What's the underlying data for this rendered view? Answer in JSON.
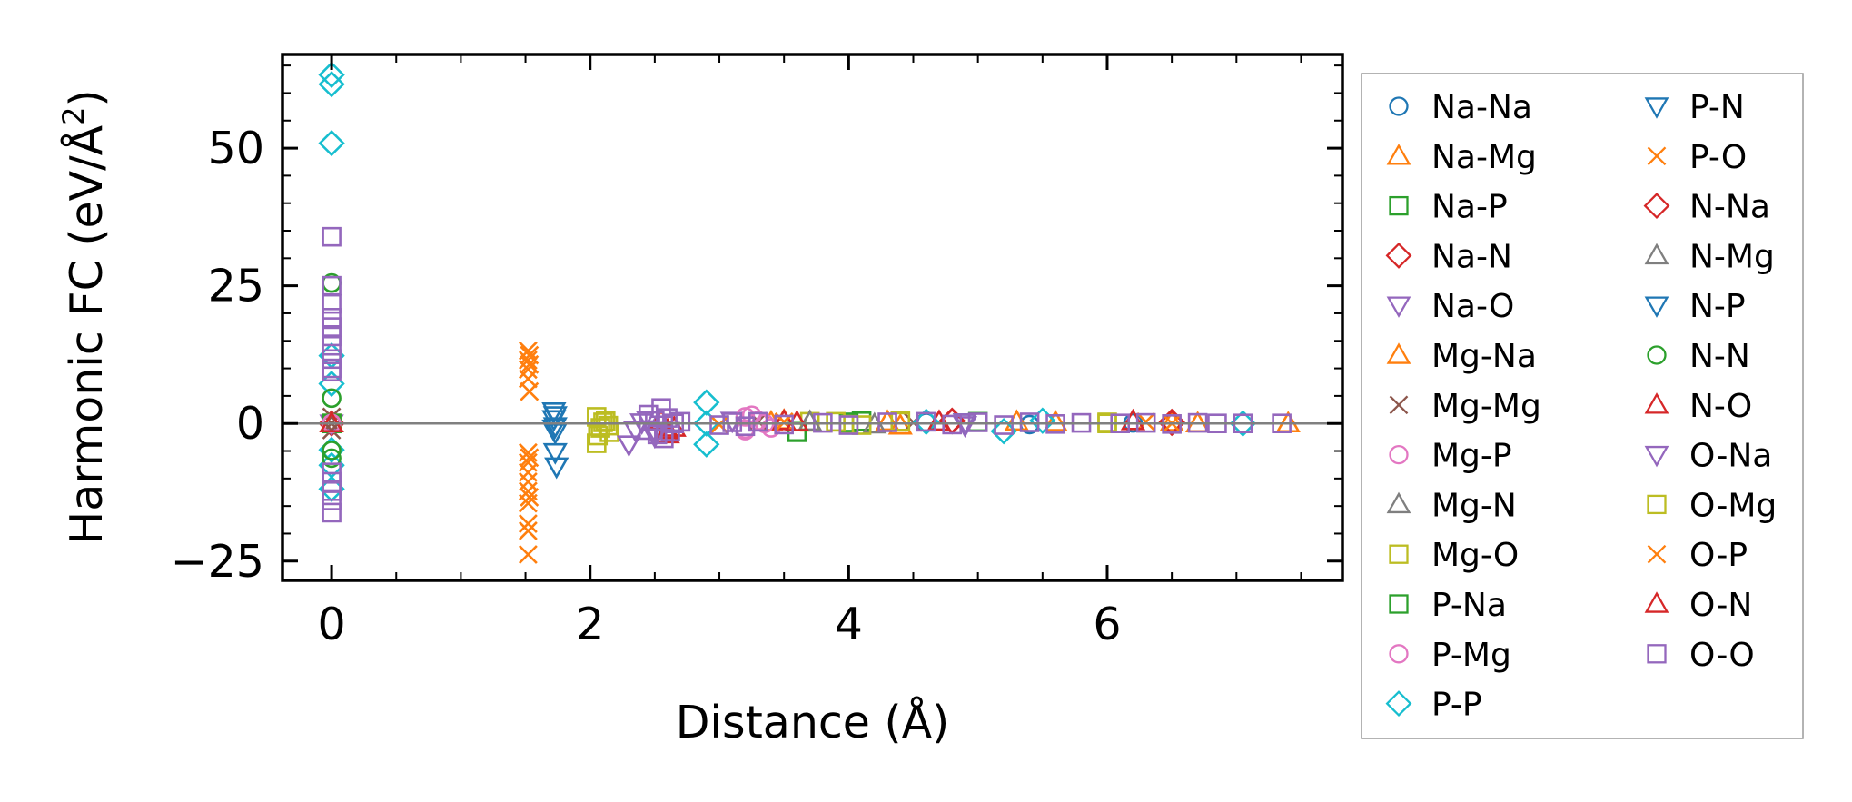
{
  "chart_data": {
    "type": "scatter",
    "xlabel": "Distance (Å)",
    "ylabel_main": "Harmonic FC (eV/Å",
    "ylabel_sup": "2",
    "ylabel_end": ")",
    "xlim": [
      -0.38,
      7.82
    ],
    "ylim": [
      -28.5,
      67
    ],
    "x_ticks": [
      0,
      2,
      4,
      6
    ],
    "y_ticks": [
      -25,
      0,
      25,
      50
    ],
    "x_tick_labels": [
      "0",
      "2",
      "4",
      "6"
    ],
    "y_tick_labels": [
      "−25",
      "0",
      "25",
      "50"
    ],
    "zero_line": true,
    "grid": false,
    "legend_placement": "outside-right",
    "series": [
      {
        "name": "Na-Na",
        "color": "#1f77b4",
        "marker": "circle",
        "points": [
          [
            0,
            0
          ],
          [
            4.6,
            0.2
          ],
          [
            5.4,
            -0.2
          ],
          [
            6.2,
            0.1
          ]
        ]
      },
      {
        "name": "Na-Mg",
        "color": "#ff7f0e",
        "marker": "triangle",
        "points": [
          [
            0,
            0
          ],
          [
            3.5,
            0.5
          ],
          [
            4.4,
            -0.4
          ],
          [
            5.3,
            0.3
          ],
          [
            6.5,
            0.2
          ],
          [
            7.4,
            0
          ]
        ]
      },
      {
        "name": "Na-P",
        "color": "#2ca02c",
        "marker": "square",
        "points": [
          [
            0,
            0
          ],
          [
            3.6,
            -1.5
          ],
          [
            4.1,
            0.4
          ],
          [
            5.0,
            0.3
          ]
        ]
      },
      {
        "name": "Na-N",
        "color": "#d62728",
        "marker": "diamond",
        "points": [
          [
            0,
            0
          ],
          [
            4.8,
            0.5
          ],
          [
            6.5,
            0.3
          ]
        ]
      },
      {
        "name": "Na-O",
        "color": "#9467bd",
        "marker": "triangle-down",
        "points": [
          [
            0,
            0
          ],
          [
            2.5,
            -1.5
          ],
          [
            3.1,
            0.5
          ],
          [
            4.9,
            -0.3
          ]
        ]
      },
      {
        "name": "Mg-Na",
        "color": "#ff7f0e",
        "marker": "triangle",
        "points": [
          [
            0,
            0
          ],
          [
            3.4,
            0.2
          ],
          [
            4.3,
            0.3
          ],
          [
            5.6,
            0.2
          ],
          [
            6.7,
            0
          ]
        ]
      },
      {
        "name": "Mg-Mg",
        "color": "#8c564b",
        "marker": "x",
        "points": [
          [
            0,
            0
          ],
          [
            0,
            1.2
          ],
          [
            0,
            -1.2
          ],
          [
            3.3,
            0.4
          ],
          [
            4.5,
            0.2
          ]
        ]
      },
      {
        "name": "Mg-P",
        "color": "#e377c2",
        "marker": "circle",
        "points": [
          [
            0,
            0
          ],
          [
            3.2,
            1.2
          ],
          [
            3.2,
            -1.3
          ],
          [
            3.3,
            0.5
          ],
          [
            3.4,
            -0.8
          ]
        ]
      },
      {
        "name": "Mg-N",
        "color": "#7f7f7f",
        "marker": "triangle",
        "points": [
          [
            0,
            0
          ],
          [
            3.7,
            0.3
          ],
          [
            4.2,
            -0.2
          ]
        ]
      },
      {
        "name": "Mg-O",
        "color": "#bcbd22",
        "marker": "square",
        "points": [
          [
            0,
            0
          ],
          [
            2.05,
            -3.6
          ],
          [
            2.05,
            1.2
          ],
          [
            2.08,
            -0.8
          ],
          [
            2.12,
            0.4
          ],
          [
            2.15,
            -1.6
          ],
          [
            3.7,
            0.3
          ],
          [
            4.0,
            -0.2
          ],
          [
            4.4,
            0.3
          ],
          [
            6.0,
            0
          ]
        ]
      },
      {
        "name": "P-Na",
        "color": "#2ca02c",
        "marker": "square",
        "points": [
          [
            0,
            0
          ],
          [
            3.6,
            -1.6
          ],
          [
            4.0,
            0.2
          ]
        ]
      },
      {
        "name": "P-Mg",
        "color": "#e377c2",
        "marker": "circle",
        "points": [
          [
            0,
            0
          ],
          [
            3.2,
            -1.0
          ],
          [
            3.25,
            1.5
          ],
          [
            3.35,
            0
          ]
        ]
      },
      {
        "name": "P-P",
        "color": "#17becf",
        "marker": "diamond",
        "points": [
          [
            0,
            63.3
          ],
          [
            0,
            61.6
          ],
          [
            0,
            50.9
          ],
          [
            0,
            12.3
          ],
          [
            0,
            7.2
          ],
          [
            0,
            -4.8
          ],
          [
            0,
            -7.6
          ],
          [
            0,
            -11.9
          ],
          [
            2.9,
            3.8
          ],
          [
            2.9,
            -3.8
          ],
          [
            2.9,
            0
          ],
          [
            4.6,
            0.3
          ],
          [
            5.2,
            -1.4
          ],
          [
            5.5,
            0.5
          ],
          [
            7.05,
            0
          ]
        ]
      },
      {
        "name": "P-N",
        "color": "#1f77b4",
        "marker": "triangle-down",
        "points": [
          [
            1.72,
            2.2
          ],
          [
            1.72,
            0.8
          ],
          [
            1.72,
            -0.9
          ],
          [
            1.73,
            -1.6
          ],
          [
            1.73,
            -5.2
          ],
          [
            1.74,
            -7.8
          ]
        ]
      },
      {
        "name": "P-O",
        "color": "#ff7f0e",
        "marker": "x",
        "points": [
          [
            1.52,
            13.2
          ],
          [
            1.52,
            11.5
          ],
          [
            1.52,
            9.8
          ],
          [
            1.52,
            8.1
          ],
          [
            1.53,
            5.8
          ],
          [
            1.52,
            -5.3
          ],
          [
            1.52,
            -7.1
          ],
          [
            1.52,
            -8.9
          ],
          [
            1.52,
            -10.6
          ],
          [
            1.52,
            -12.3
          ],
          [
            1.52,
            -14.5
          ],
          [
            1.52,
            -18.2
          ],
          [
            1.52,
            -19.5
          ],
          [
            1.52,
            -23.8
          ],
          [
            3.0,
            -0.2
          ],
          [
            3.5,
            0.3
          ],
          [
            6.3,
            0.3
          ]
        ]
      },
      {
        "name": "N-Na",
        "color": "#d62728",
        "marker": "diamond",
        "points": [
          [
            4.8,
            0.4
          ],
          [
            6.5,
            0.1
          ]
        ]
      },
      {
        "name": "N-Mg",
        "color": "#7f7f7f",
        "marker": "triangle",
        "points": [
          [
            3.7,
            0.2
          ]
        ]
      },
      {
        "name": "N-P",
        "color": "#1f77b4",
        "marker": "triangle-down",
        "points": [
          [
            1.73,
            1.5
          ],
          [
            1.73,
            -0.5
          ],
          [
            4.9,
            0.2
          ]
        ]
      },
      {
        "name": "N-N",
        "color": "#2ca02c",
        "marker": "circle",
        "points": [
          [
            0,
            25.5
          ],
          [
            0,
            4.6
          ],
          [
            0,
            -4.9
          ],
          [
            0,
            -6.3
          ]
        ]
      },
      {
        "name": "N-O",
        "color": "#d62728",
        "marker": "triangle",
        "points": [
          [
            0,
            0
          ],
          [
            2.6,
            -2.0
          ],
          [
            2.6,
            -1.2
          ],
          [
            3.5,
            0.4
          ],
          [
            4.7,
            0.3
          ],
          [
            6.2,
            0.4
          ]
        ]
      },
      {
        "name": "O-Na",
        "color": "#9467bd",
        "marker": "triangle-down",
        "points": [
          [
            2.3,
            -3.8
          ],
          [
            2.35,
            -1.2
          ],
          [
            2.4,
            0.2
          ],
          [
            2.45,
            0.6
          ],
          [
            2.5,
            -2.3
          ],
          [
            4.9,
            0.2
          ]
        ]
      },
      {
        "name": "O-Mg",
        "color": "#bcbd22",
        "marker": "square",
        "points": [
          [
            2.06,
            -2.2
          ],
          [
            2.1,
            0.2
          ],
          [
            2.14,
            -0.4
          ],
          [
            3.9,
            0.3
          ],
          [
            4.1,
            -0.3
          ],
          [
            4.4,
            0.4
          ],
          [
            6.0,
            0.2
          ]
        ]
      },
      {
        "name": "O-P",
        "color": "#ff7f0e",
        "marker": "x",
        "points": [
          [
            1.53,
            12.4
          ],
          [
            1.53,
            10.7
          ],
          [
            1.53,
            -6.2
          ],
          [
            1.53,
            -13.4
          ],
          [
            3.5,
            0.2
          ],
          [
            6.5,
            0
          ]
        ]
      },
      {
        "name": "O-N",
        "color": "#d62728",
        "marker": "triangle",
        "points": [
          [
            2.55,
            0.4
          ],
          [
            2.65,
            -0.8
          ],
          [
            3.6,
            0.2
          ]
        ]
      },
      {
        "name": "O-O",
        "color": "#9467bd",
        "marker": "square",
        "points": [
          [
            0,
            33.9
          ],
          [
            0,
            25.0
          ],
          [
            0,
            21.7
          ],
          [
            0,
            19.2
          ],
          [
            0,
            17.5
          ],
          [
            0,
            15.8
          ],
          [
            0,
            14.1
          ],
          [
            0,
            11.7
          ],
          [
            0,
            10.0
          ],
          [
            0,
            9.4
          ],
          [
            0,
            -8.9
          ],
          [
            0,
            -10.6
          ],
          [
            0,
            -12.3
          ],
          [
            0,
            -14.0
          ],
          [
            0,
            -16.2
          ],
          [
            2.45,
            1.6
          ],
          [
            2.45,
            -1.2
          ],
          [
            2.5,
            0.5
          ],
          [
            2.52,
            -2.0
          ],
          [
            2.55,
            2.8
          ],
          [
            2.57,
            -2.7
          ],
          [
            2.6,
            1.0
          ],
          [
            2.62,
            -1.5
          ],
          [
            2.65,
            0
          ],
          [
            2.7,
            0.3
          ],
          [
            3.0,
            -0.3
          ],
          [
            3.1,
            0.2
          ],
          [
            3.2,
            -0.5
          ],
          [
            3.3,
            0.3
          ],
          [
            3.5,
            -0.2
          ],
          [
            3.8,
            0.1
          ],
          [
            4.0,
            -0.3
          ],
          [
            4.3,
            0.2
          ],
          [
            4.6,
            0.3
          ],
          [
            4.8,
            -0.2
          ],
          [
            5.0,
            0.2
          ],
          [
            5.2,
            -0.3
          ],
          [
            5.4,
            0.2
          ],
          [
            5.6,
            -0.1
          ],
          [
            5.8,
            0.1
          ],
          [
            6.1,
            0
          ],
          [
            6.3,
            0.1
          ],
          [
            6.5,
            -0.1
          ],
          [
            6.7,
            0.1
          ],
          [
            6.85,
            0
          ],
          [
            7.05,
            0
          ],
          [
            7.35,
            0
          ]
        ]
      }
    ]
  }
}
